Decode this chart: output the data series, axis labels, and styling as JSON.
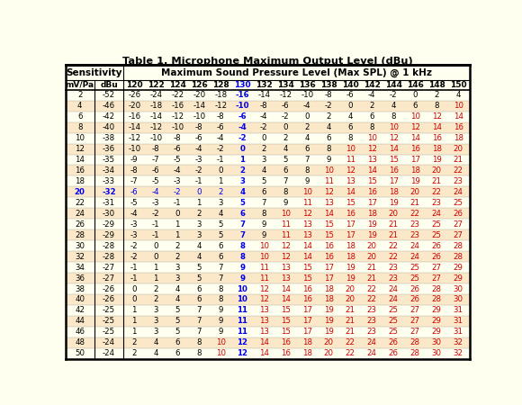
{
  "title": "Table 1. Microphone Maximum Output Level (dBu)",
  "header2": [
    "mV/Pa",
    "dBu",
    "120",
    "122",
    "124",
    "126",
    "128",
    "130",
    "132",
    "134",
    "136",
    "138",
    "140",
    "142",
    "144",
    "146",
    "148",
    "150"
  ],
  "highlight_col_label": "130",
  "highlight_row_mv": 20,
  "rows": [
    [
      2,
      -52,
      -26,
      -24,
      -22,
      -20,
      -18,
      -16,
      -14,
      -12,
      -10,
      -8,
      -6,
      -4,
      -2,
      0,
      2,
      4
    ],
    [
      4,
      -46,
      -20,
      -18,
      -16,
      -14,
      -12,
      -10,
      -8,
      -6,
      -4,
      -2,
      0,
      2,
      4,
      6,
      8,
      10
    ],
    [
      6,
      -42,
      -16,
      -14,
      -12,
      -10,
      -8,
      -6,
      -4,
      -2,
      0,
      2,
      4,
      6,
      8,
      10,
      12,
      14
    ],
    [
      8,
      -40,
      -14,
      -12,
      -10,
      -8,
      -6,
      -4,
      -2,
      0,
      2,
      4,
      6,
      8,
      10,
      12,
      14,
      16
    ],
    [
      10,
      -38,
      -12,
      -10,
      -8,
      -6,
      -4,
      -2,
      0,
      2,
      4,
      6,
      8,
      10,
      12,
      14,
      16,
      18
    ],
    [
      12,
      -36,
      -10,
      -8,
      -6,
      -4,
      -2,
      0,
      2,
      4,
      6,
      8,
      10,
      12,
      14,
      16,
      18,
      20
    ],
    [
      14,
      -35,
      -9,
      -7,
      -5,
      -3,
      -1,
      1,
      3,
      5,
      7,
      9,
      11,
      13,
      15,
      17,
      19,
      21
    ],
    [
      16,
      -34,
      -8,
      -6,
      -4,
      -2,
      0,
      2,
      4,
      6,
      8,
      10,
      12,
      14,
      16,
      18,
      20,
      22
    ],
    [
      18,
      -33,
      -7,
      -5,
      -3,
      -1,
      1,
      3,
      5,
      7,
      9,
      11,
      13,
      15,
      17,
      19,
      21,
      23
    ],
    [
      20,
      -32,
      -6,
      -4,
      -2,
      0,
      2,
      4,
      6,
      8,
      10,
      12,
      14,
      16,
      18,
      20,
      22,
      24
    ],
    [
      22,
      -31,
      -5,
      -3,
      -1,
      1,
      3,
      5,
      7,
      9,
      11,
      13,
      15,
      17,
      19,
      21,
      23,
      25
    ],
    [
      24,
      -30,
      -4,
      -2,
      0,
      2,
      4,
      6,
      8,
      10,
      12,
      14,
      16,
      18,
      20,
      22,
      24,
      26
    ],
    [
      26,
      -29,
      -3,
      -1,
      1,
      3,
      5,
      7,
      9,
      11,
      13,
      15,
      17,
      19,
      21,
      23,
      25,
      27
    ],
    [
      28,
      -29,
      -3,
      -1,
      1,
      3,
      5,
      7,
      9,
      11,
      13,
      15,
      17,
      19,
      21,
      23,
      25,
      27
    ],
    [
      30,
      -28,
      -2,
      0,
      2,
      4,
      6,
      8,
      10,
      12,
      14,
      16,
      18,
      20,
      22,
      24,
      26,
      28
    ],
    [
      32,
      -28,
      -2,
      0,
      2,
      4,
      6,
      8,
      10,
      12,
      14,
      16,
      18,
      20,
      22,
      24,
      26,
      28
    ],
    [
      34,
      -27,
      -1,
      1,
      3,
      5,
      7,
      9,
      11,
      13,
      15,
      17,
      19,
      21,
      23,
      25,
      27,
      29
    ],
    [
      36,
      -27,
      -1,
      1,
      3,
      5,
      7,
      9,
      11,
      13,
      15,
      17,
      19,
      21,
      23,
      25,
      27,
      29
    ],
    [
      38,
      -26,
      0,
      2,
      4,
      6,
      8,
      10,
      12,
      14,
      16,
      18,
      20,
      22,
      24,
      26,
      28,
      30
    ],
    [
      40,
      -26,
      0,
      2,
      4,
      6,
      8,
      10,
      12,
      14,
      16,
      18,
      20,
      22,
      24,
      26,
      28,
      30
    ],
    [
      42,
      -25,
      1,
      3,
      5,
      7,
      9,
      11,
      13,
      15,
      17,
      19,
      21,
      23,
      25,
      27,
      29,
      31
    ],
    [
      44,
      -25,
      1,
      3,
      5,
      7,
      9,
      11,
      13,
      15,
      17,
      19,
      21,
      23,
      25,
      27,
      29,
      31
    ],
    [
      46,
      -25,
      1,
      3,
      5,
      7,
      9,
      11,
      13,
      15,
      17,
      19,
      21,
      23,
      25,
      27,
      29,
      31
    ],
    [
      48,
      -24,
      2,
      4,
      6,
      8,
      10,
      12,
      14,
      16,
      18,
      20,
      22,
      24,
      26,
      28,
      30,
      32
    ],
    [
      50,
      -24,
      2,
      4,
      6,
      8,
      10,
      12,
      14,
      16,
      18,
      20,
      22,
      24,
      26,
      28,
      30,
      32
    ]
  ],
  "bg_color": "#FFFFF0",
  "odd_row_bg": "#FFFFF0",
  "even_row_bg": "#FAE8C8",
  "black_text": "#000000",
  "blue_text": "#0000EE",
  "red_text": "#CC0000",
  "threshold_dbu": 10,
  "blue_col_idx": 5
}
